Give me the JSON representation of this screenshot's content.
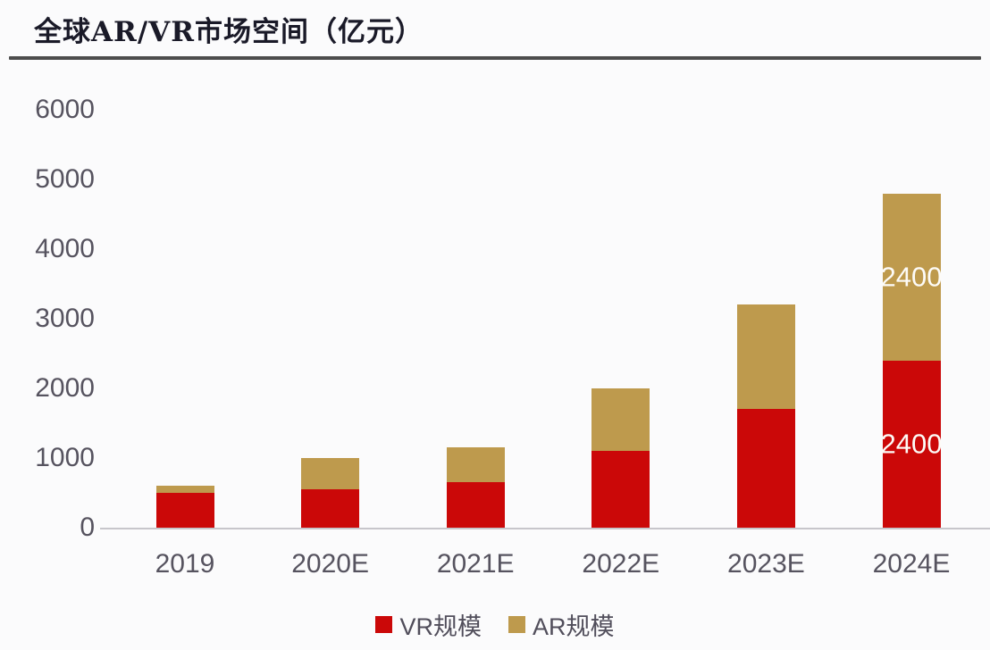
{
  "title": "全球AR/VR市场空间（亿元）",
  "chart_data": {
    "type": "bar",
    "stacked": true,
    "title": "全球AR/VR市场空间（亿元）",
    "categories": [
      "2019",
      "2020E",
      "2021E",
      "2022E",
      "2023E",
      "2024E"
    ],
    "series": [
      {
        "name": "VR规模",
        "color": "#cb0808",
        "values": [
          500,
          550,
          650,
          1100,
          1700,
          2400
        ]
      },
      {
        "name": "AR规模",
        "color": "#be9a4d",
        "values": [
          100,
          450,
          500,
          900,
          1500,
          2400
        ]
      }
    ],
    "data_labels": [
      {
        "category_index": 5,
        "series_index": 0,
        "text": "2400",
        "color": "#fdfbf7"
      },
      {
        "category_index": 5,
        "series_index": 1,
        "text": "2400",
        "color": "#fdfbf7"
      }
    ],
    "xlabel": "",
    "ylabel": "",
    "ylim": [
      0,
      6000
    ],
    "yticks": [
      "0",
      "1000",
      "2000",
      "3000",
      "4000",
      "5000",
      "6000"
    ],
    "grid": false,
    "legend_position": "bottom"
  },
  "colors": {
    "vr": "#cb0808",
    "ar": "#be9a4d",
    "title_text": "#1a1a28",
    "axis_text": "#56535f",
    "title_rule": "#4d4d4d",
    "axis_line": "#c7c6cb",
    "background": "#fbfbfc"
  }
}
